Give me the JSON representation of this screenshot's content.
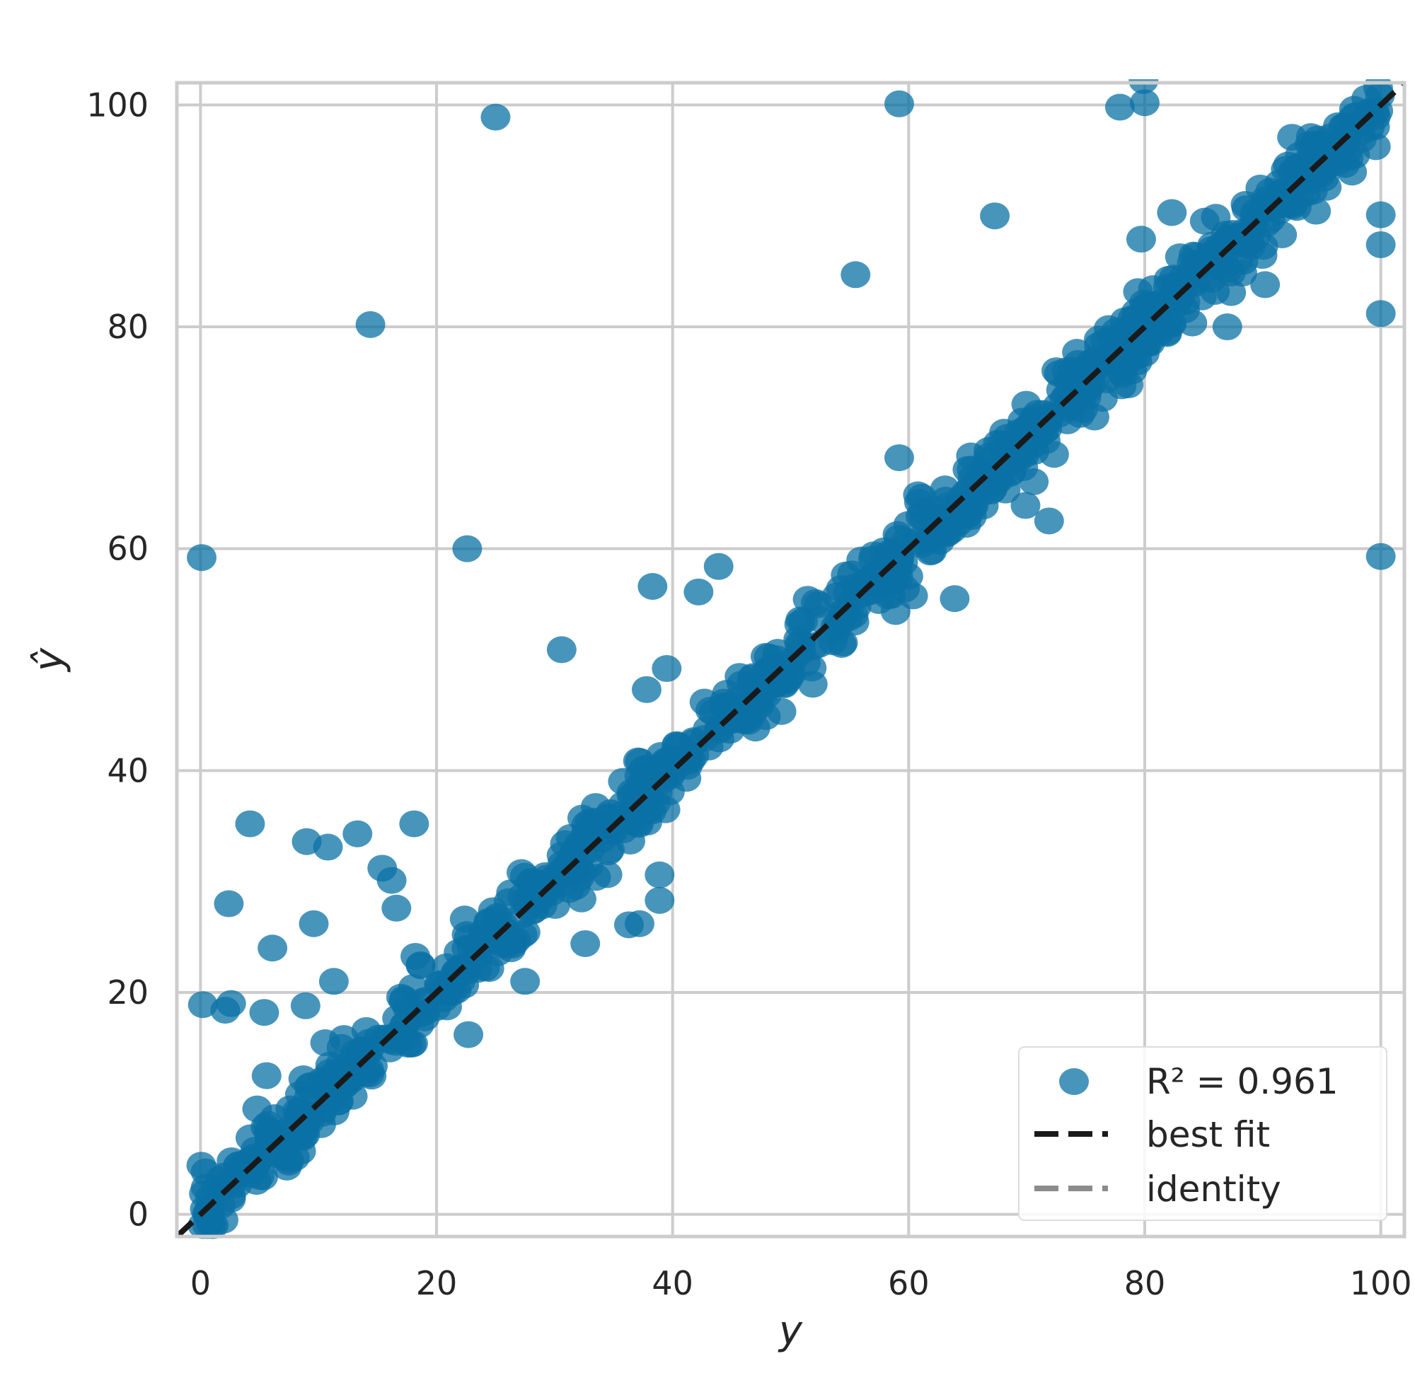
{
  "chart_data": {
    "type": "scatter",
    "title": "",
    "xlabel": "y",
    "ylabel": "ŷ",
    "xlim": [
      -2,
      102
    ],
    "ylim": [
      -2,
      102
    ],
    "xticks": [
      0,
      20,
      40,
      60,
      80,
      100
    ],
    "yticks": [
      0,
      20,
      40,
      60,
      80,
      100
    ],
    "xtick_labels": [
      "0",
      "20",
      "40",
      "60",
      "80",
      "100"
    ],
    "ytick_labels": [
      "0",
      "20",
      "40",
      "60",
      "80",
      "100"
    ],
    "grid": true,
    "legend_position": "bottom-right",
    "legend": {
      "r2_label": "R² = 0.961",
      "best_fit_label": "best fit",
      "identity_label": "identity"
    },
    "colors": {
      "points": "#0b72a6",
      "best_fit": "#1a1a1a",
      "identity": "#8c8c8c",
      "grid": "#cccccc",
      "frame": "#cccccc"
    },
    "best_fit_line": {
      "x": [
        -2,
        102
      ],
      "y": [
        -2,
        102
      ]
    },
    "dense_band": {
      "x_range": [
        0,
        100
      ],
      "noise_sd": 1.6,
      "count": 900
    },
    "outliers": [
      {
        "x": 0.1,
        "y": 59.2
      },
      {
        "x": 0.2,
        "y": 18.9
      },
      {
        "x": 2.1,
        "y": 18.4
      },
      {
        "x": 2.6,
        "y": 19.0
      },
      {
        "x": 2.4,
        "y": 28.0
      },
      {
        "x": 4.2,
        "y": 35.2
      },
      {
        "x": 5.4,
        "y": 18.2
      },
      {
        "x": 6.1,
        "y": 24.0
      },
      {
        "x": 9.0,
        "y": 33.6
      },
      {
        "x": 10.8,
        "y": 33.1
      },
      {
        "x": 13.3,
        "y": 34.3
      },
      {
        "x": 9.6,
        "y": 26.2
      },
      {
        "x": 8.9,
        "y": 18.8
      },
      {
        "x": 11.3,
        "y": 21.0
      },
      {
        "x": 15.4,
        "y": 31.2
      },
      {
        "x": 16.2,
        "y": 30.1
      },
      {
        "x": 16.6,
        "y": 27.6
      },
      {
        "x": 18.1,
        "y": 35.2
      },
      {
        "x": 14.4,
        "y": 80.2
      },
      {
        "x": 25.0,
        "y": 98.9
      },
      {
        "x": 22.6,
        "y": 60.0
      },
      {
        "x": 30.6,
        "y": 50.9
      },
      {
        "x": 38.3,
        "y": 56.6
      },
      {
        "x": 42.2,
        "y": 56.1
      },
      {
        "x": 43.9,
        "y": 58.4
      },
      {
        "x": 39.5,
        "y": 49.2
      },
      {
        "x": 37.8,
        "y": 47.3
      },
      {
        "x": 38.9,
        "y": 28.3
      },
      {
        "x": 38.9,
        "y": 30.6
      },
      {
        "x": 37.2,
        "y": 26.2
      },
      {
        "x": 36.3,
        "y": 26.1
      },
      {
        "x": 55.5,
        "y": 84.7
      },
      {
        "x": 59.2,
        "y": 100.1
      },
      {
        "x": 67.3,
        "y": 90.0
      },
      {
        "x": 77.9,
        "y": 99.8
      },
      {
        "x": 80.0,
        "y": 100.2
      },
      {
        "x": 79.9,
        "y": 102.2
      },
      {
        "x": 100.0,
        "y": 81.2
      },
      {
        "x": 100.0,
        "y": 59.3
      },
      {
        "x": 100.0,
        "y": 87.4
      },
      {
        "x": 100.0,
        "y": 90.1
      },
      {
        "x": 59.2,
        "y": 68.2
      },
      {
        "x": 71.9,
        "y": 62.5
      },
      {
        "x": 69.9,
        "y": 63.9
      },
      {
        "x": 79.7,
        "y": 87.9
      },
      {
        "x": 82.3,
        "y": 90.3
      },
      {
        "x": 90.2,
        "y": 83.8
      },
      {
        "x": 87.0,
        "y": 80.0
      },
      {
        "x": 63.9,
        "y": 55.5
      },
      {
        "x": 32.6,
        "y": 24.4
      },
      {
        "x": 22.7,
        "y": 16.2
      },
      {
        "x": 27.5,
        "y": 21.0
      },
      {
        "x": 4.8,
        "y": 9.5
      },
      {
        "x": 5.6,
        "y": 12.5
      }
    ]
  }
}
